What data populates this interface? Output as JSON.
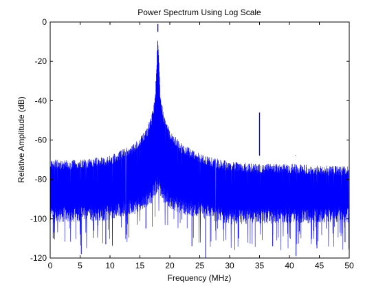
{
  "chart_data": {
    "type": "line",
    "title": "Power Spectrum Using Log Scale",
    "xlabel": "Frequency (MHz)",
    "ylabel": "Relative Amplitude (dB)",
    "xlim": [
      0,
      50
    ],
    "ylim": [
      -120,
      0
    ],
    "xticks": [
      "0",
      "5",
      "10",
      "15",
      "20",
      "25",
      "30",
      "35",
      "40",
      "45",
      "50"
    ],
    "yticks": [
      "0",
      "-20",
      "-40",
      "-60",
      "-80",
      "-100",
      "-120"
    ],
    "grid": false,
    "legend": "none",
    "line_color": "#0000ff",
    "series": [
      {
        "noise_floor_db": -82,
        "upper_envelope": [
          {
            "x": 0,
            "y": -70
          },
          {
            "x": 5,
            "y": -70
          },
          {
            "x": 10,
            "y": -68
          },
          {
            "x": 14,
            "y": -62
          },
          {
            "x": 16,
            "y": -55
          },
          {
            "x": 17,
            "y": -47
          },
          {
            "x": 17.6,
            "y": -35
          },
          {
            "x": 18,
            "y": -5
          },
          {
            "x": 18.4,
            "y": -35
          },
          {
            "x": 19,
            "y": -47
          },
          {
            "x": 20,
            "y": -55
          },
          {
            "x": 22,
            "y": -62
          },
          {
            "x": 26,
            "y": -68
          },
          {
            "x": 30,
            "y": -71
          },
          {
            "x": 35,
            "y": -72
          },
          {
            "x": 40,
            "y": -72
          },
          {
            "x": 45,
            "y": -73
          },
          {
            "x": 50,
            "y": -73
          }
        ],
        "lower_envelope": [
          {
            "x": 0,
            "y": -98
          },
          {
            "x": 10,
            "y": -97
          },
          {
            "x": 15,
            "y": -93
          },
          {
            "x": 17,
            "y": -88
          },
          {
            "x": 18,
            "y": -82
          },
          {
            "x": 19,
            "y": -88
          },
          {
            "x": 21,
            "y": -93
          },
          {
            "x": 30,
            "y": -99
          },
          {
            "x": 50,
            "y": -98
          }
        ],
        "peaks": [
          {
            "x": 18,
            "y": -5
          },
          {
            "x": 35,
            "y": -46
          },
          {
            "x": 41,
            "y": -68
          }
        ],
        "deep_dips": [
          {
            "x": 0.5,
            "y": -110
          },
          {
            "x": 5.2,
            "y": -118
          },
          {
            "x": 9.3,
            "y": -113
          },
          {
            "x": 12.8,
            "y": -108
          },
          {
            "x": 16.0,
            "y": -105
          },
          {
            "x": 23.7,
            "y": -114
          },
          {
            "x": 26.0,
            "y": -120
          },
          {
            "x": 31.5,
            "y": -110
          },
          {
            "x": 37.2,
            "y": -114
          },
          {
            "x": 41.1,
            "y": -119
          },
          {
            "x": 44.6,
            "y": -115
          },
          {
            "x": 49.3,
            "y": -112
          }
        ]
      }
    ]
  }
}
